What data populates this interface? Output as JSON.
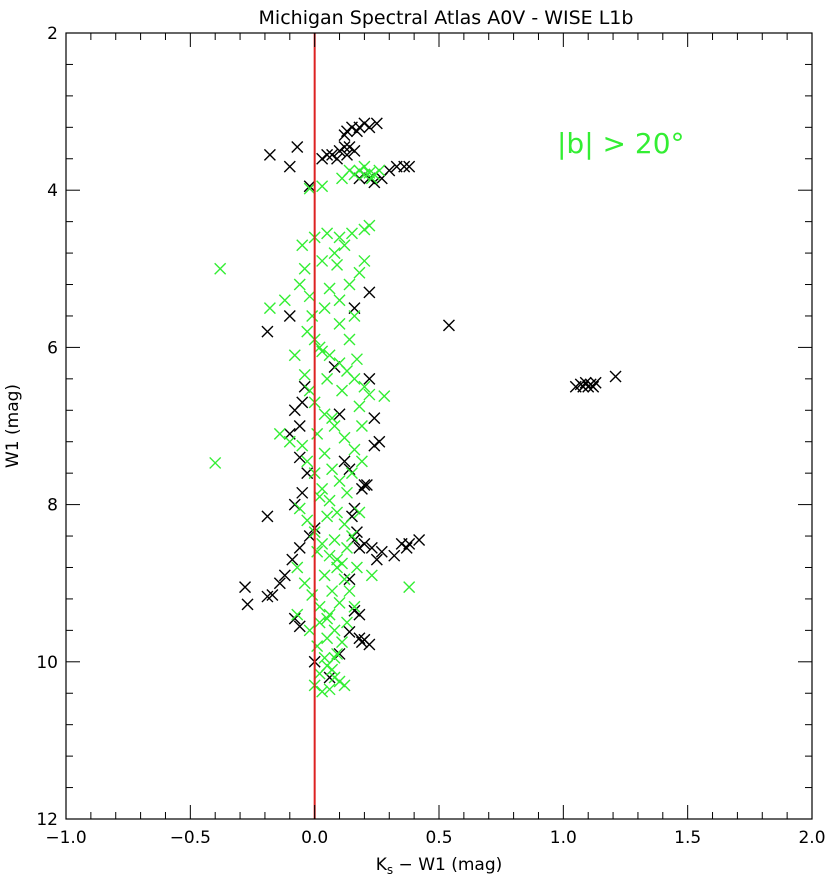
{
  "chart_data": {
    "type": "scatter",
    "title": "Michigan Spectral Atlas A0V - WISE L1b",
    "xlabel": "K_s - W1 (mag)",
    "xlabel_main": "K",
    "xlabel_sub": "s",
    "xlabel_rest": " − W1 (mag)",
    "ylabel": "W1 (mag)",
    "xlim": [
      -1.0,
      2.0
    ],
    "ylim": [
      12,
      2
    ],
    "y_inverted": true,
    "grid": false,
    "x_ticks": [
      "−1.0",
      "−0.5",
      "0.0",
      "0.5",
      "1.0",
      "1.5",
      "2.0"
    ],
    "x_tick_values": [
      -1.0,
      -0.5,
      0.0,
      0.5,
      1.0,
      1.5,
      2.0
    ],
    "y_ticks": [
      "2",
      "4",
      "6",
      "8",
      "10",
      "12"
    ],
    "y_tick_values": [
      2,
      4,
      6,
      8,
      10,
      12
    ],
    "annotation": {
      "text": "|b| > 20°",
      "color": "#33ee33"
    },
    "reference_line": {
      "x": 0.0,
      "color": "#dd2222"
    },
    "colors": {
      "black_series": "#000000",
      "green_series": "#33ee33",
      "axes": "#000000"
    },
    "series": [
      {
        "color": "#000000",
        "marker": "x",
        "points": [
          [
            -0.18,
            3.55
          ],
          [
            -0.1,
            3.7
          ],
          [
            -0.07,
            3.45
          ],
          [
            -0.02,
            3.95
          ],
          [
            0.03,
            3.6
          ],
          [
            0.05,
            3.55
          ],
          [
            0.07,
            3.55
          ],
          [
            0.09,
            3.6
          ],
          [
            0.1,
            3.5
          ],
          [
            0.12,
            3.45
          ],
          [
            0.13,
            3.55
          ],
          [
            0.14,
            3.45
          ],
          [
            0.12,
            3.3
          ],
          [
            0.13,
            3.25
          ],
          [
            0.15,
            3.2
          ],
          [
            0.17,
            3.25
          ],
          [
            0.18,
            3.2
          ],
          [
            0.2,
            3.15
          ],
          [
            0.22,
            3.2
          ],
          [
            0.25,
            3.15
          ],
          [
            0.16,
            3.5
          ],
          [
            0.18,
            3.85
          ],
          [
            0.2,
            3.8
          ],
          [
            0.22,
            3.85
          ],
          [
            0.24,
            3.9
          ],
          [
            0.27,
            3.85
          ],
          [
            0.3,
            3.75
          ],
          [
            0.33,
            3.7
          ],
          [
            0.36,
            3.7
          ],
          [
            0.38,
            3.7
          ],
          [
            0.54,
            5.72
          ],
          [
            -0.19,
            5.8
          ],
          [
            -0.1,
            5.6
          ],
          [
            0.22,
            5.3
          ],
          [
            0.16,
            5.5
          ],
          [
            1.05,
            6.5
          ],
          [
            1.07,
            6.47
          ],
          [
            1.08,
            6.5
          ],
          [
            1.09,
            6.45
          ],
          [
            1.1,
            6.5
          ],
          [
            1.11,
            6.47
          ],
          [
            1.12,
            6.5
          ],
          [
            1.13,
            6.45
          ],
          [
            1.21,
            6.37
          ],
          [
            -0.04,
            6.5
          ],
          [
            -0.05,
            6.7
          ],
          [
            -0.08,
            6.8
          ],
          [
            -0.06,
            7.0
          ],
          [
            0.22,
            6.4
          ],
          [
            0.24,
            6.9
          ],
          [
            0.26,
            7.2
          ],
          [
            0.24,
            7.25
          ],
          [
            -0.1,
            7.1
          ],
          [
            -0.06,
            7.4
          ],
          [
            -0.19,
            8.15
          ],
          [
            -0.08,
            8.0
          ],
          [
            0.0,
            8.3
          ],
          [
            -0.02,
            8.4
          ],
          [
            -0.06,
            8.55
          ],
          [
            -0.09,
            8.7
          ],
          [
            -0.12,
            8.9
          ],
          [
            -0.14,
            9.0
          ],
          [
            -0.17,
            9.15
          ],
          [
            -0.19,
            9.17
          ],
          [
            -0.28,
            9.05
          ],
          [
            -0.27,
            9.27
          ],
          [
            -0.08,
            9.45
          ],
          [
            -0.06,
            9.55
          ],
          [
            0.0,
            10.0
          ],
          [
            0.21,
            7.75
          ],
          [
            0.19,
            7.8
          ],
          [
            0.2,
            7.75
          ],
          [
            0.16,
            8.05
          ],
          [
            0.15,
            8.15
          ],
          [
            0.17,
            8.35
          ],
          [
            0.16,
            8.45
          ],
          [
            0.18,
            8.55
          ],
          [
            0.2,
            8.5
          ],
          [
            0.23,
            8.55
          ],
          [
            0.25,
            8.7
          ],
          [
            0.27,
            8.6
          ],
          [
            0.32,
            8.65
          ],
          [
            0.35,
            8.5
          ],
          [
            0.37,
            8.55
          ],
          [
            0.38,
            8.5
          ],
          [
            0.42,
            8.45
          ],
          [
            0.14,
            8.95
          ],
          [
            0.16,
            9.35
          ],
          [
            0.18,
            9.4
          ],
          [
            0.18,
            9.7
          ],
          [
            0.19,
            9.75
          ],
          [
            0.2,
            9.72
          ],
          [
            0.22,
            9.78
          ],
          [
            0.14,
            9.62
          ],
          [
            0.1,
            9.9
          ],
          [
            0.06,
            10.2
          ],
          [
            0.08,
            6.25
          ],
          [
            0.1,
            6.85
          ],
          [
            -0.03,
            7.6
          ],
          [
            -0.05,
            7.85
          ],
          [
            0.12,
            7.45
          ],
          [
            0.14,
            7.55
          ]
        ]
      },
      {
        "color": "#33ee33",
        "marker": "x",
        "points": [
          [
            -0.02,
            3.98
          ],
          [
            0.03,
            3.95
          ],
          [
            0.11,
            3.85
          ],
          [
            0.14,
            3.75
          ],
          [
            0.16,
            3.8
          ],
          [
            0.18,
            3.75
          ],
          [
            0.2,
            3.8
          ],
          [
            0.22,
            3.78
          ],
          [
            0.24,
            3.8
          ],
          [
            0.26,
            3.75
          ],
          [
            0.2,
            3.7
          ],
          [
            0.23,
            3.85
          ],
          [
            -0.38,
            5.0
          ],
          [
            -0.4,
            7.47
          ],
          [
            -0.18,
            5.5
          ],
          [
            -0.12,
            5.4
          ],
          [
            0.38,
            9.05
          ],
          [
            0.28,
            6.62
          ],
          [
            -0.14,
            7.1
          ],
          [
            -0.1,
            7.2
          ],
          [
            0.23,
            8.9
          ],
          [
            -0.05,
            4.7
          ],
          [
            0.0,
            4.6
          ],
          [
            0.05,
            4.55
          ],
          [
            0.1,
            4.6
          ],
          [
            0.15,
            4.55
          ],
          [
            0.2,
            4.5
          ],
          [
            0.22,
            4.45
          ],
          [
            0.12,
            4.7
          ],
          [
            0.08,
            4.8
          ],
          [
            0.03,
            4.9
          ],
          [
            -0.04,
            5.0
          ],
          [
            -0.06,
            5.2
          ],
          [
            -0.02,
            5.35
          ],
          [
            0.04,
            5.5
          ],
          [
            0.1,
            5.4
          ],
          [
            0.14,
            5.2
          ],
          [
            0.18,
            5.05
          ],
          [
            0.2,
            4.9
          ],
          [
            0.16,
            5.6
          ],
          [
            0.1,
            5.7
          ],
          [
            -0.03,
            5.8
          ],
          [
            0.0,
            5.9
          ],
          [
            0.03,
            6.05
          ],
          [
            0.06,
            6.1
          ],
          [
            0.1,
            6.2
          ],
          [
            0.13,
            6.3
          ],
          [
            0.16,
            6.4
          ],
          [
            0.2,
            6.5
          ],
          [
            0.22,
            6.6
          ],
          [
            0.18,
            6.75
          ],
          [
            -0.04,
            6.35
          ],
          [
            -0.02,
            6.55
          ],
          [
            0.0,
            6.7
          ],
          [
            0.04,
            6.85
          ],
          [
            0.08,
            7.0
          ],
          [
            0.12,
            7.15
          ],
          [
            0.16,
            7.3
          ],
          [
            0.19,
            7.45
          ],
          [
            0.15,
            7.6
          ],
          [
            0.1,
            7.7
          ],
          [
            -0.05,
            7.25
          ],
          [
            -0.03,
            7.45
          ],
          [
            0.0,
            7.6
          ],
          [
            0.03,
            7.8
          ],
          [
            0.06,
            7.95
          ],
          [
            0.09,
            8.1
          ],
          [
            0.12,
            8.25
          ],
          [
            0.15,
            8.4
          ],
          [
            0.13,
            8.55
          ],
          [
            0.09,
            8.7
          ],
          [
            -0.06,
            8.05
          ],
          [
            -0.03,
            8.2
          ],
          [
            0.0,
            8.35
          ],
          [
            0.03,
            8.5
          ],
          [
            0.06,
            8.65
          ],
          [
            0.09,
            8.8
          ],
          [
            0.12,
            8.95
          ],
          [
            0.14,
            9.1
          ],
          [
            0.1,
            9.25
          ],
          [
            0.06,
            9.4
          ],
          [
            -0.07,
            8.8
          ],
          [
            -0.04,
            9.0
          ],
          [
            -0.01,
            9.15
          ],
          [
            0.02,
            9.3
          ],
          [
            0.05,
            9.45
          ],
          [
            0.08,
            9.6
          ],
          [
            0.11,
            9.75
          ],
          [
            0.09,
            9.9
          ],
          [
            0.05,
            10.05
          ],
          [
            0.02,
            10.15
          ],
          [
            -0.02,
            9.6
          ],
          [
            0.01,
            9.8
          ],
          [
            0.04,
            9.95
          ],
          [
            0.07,
            10.1
          ],
          [
            0.1,
            10.25
          ],
          [
            0.06,
            10.35
          ],
          [
            0.03,
            10.38
          ],
          [
            0.12,
            10.3
          ],
          [
            0.08,
            10.2
          ],
          [
            0.0,
            10.3
          ],
          [
            0.02,
            6.0
          ],
          [
            0.05,
            6.4
          ],
          [
            0.07,
            6.9
          ],
          [
            0.01,
            7.1
          ],
          [
            0.04,
            7.35
          ],
          [
            0.07,
            7.55
          ],
          [
            0.02,
            7.9
          ],
          [
            0.05,
            8.15
          ],
          [
            0.08,
            8.45
          ],
          [
            0.01,
            8.6
          ],
          [
            0.04,
            8.9
          ],
          [
            0.07,
            9.1
          ],
          [
            0.02,
            9.5
          ],
          [
            0.05,
            9.7
          ],
          [
            0.08,
            9.95
          ],
          [
            0.11,
            6.55
          ],
          [
            0.13,
            7.85
          ],
          [
            0.11,
            8.75
          ],
          [
            0.13,
            9.5
          ],
          [
            -0.01,
            5.6
          ],
          [
            0.06,
            5.25
          ],
          [
            0.09,
            4.95
          ],
          [
            0.14,
            5.9
          ],
          [
            0.17,
            6.15
          ],
          [
            0.19,
            7.0
          ],
          [
            0.18,
            8.1
          ],
          [
            0.17,
            8.8
          ],
          [
            0.16,
            9.3
          ],
          [
            -0.08,
            6.1
          ],
          [
            -0.07,
            9.4
          ]
        ]
      }
    ]
  }
}
